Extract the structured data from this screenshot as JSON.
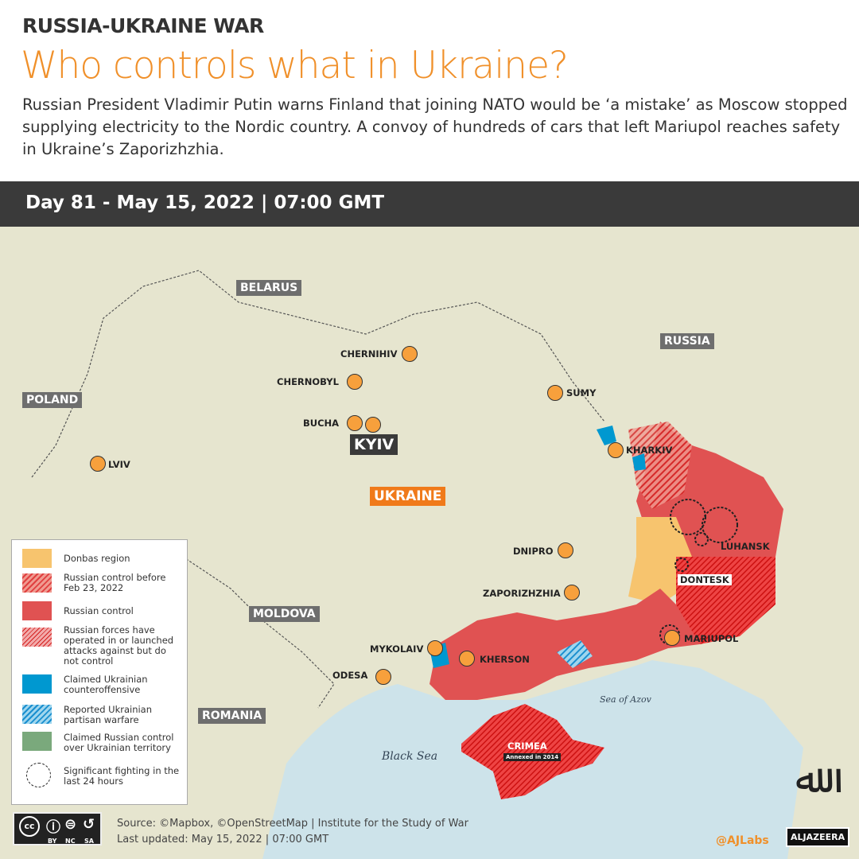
{
  "header": {
    "kicker": "RUSSIA-UKRAINE WAR",
    "title": "Who controls what in Ukraine?",
    "description": "Russian President Vladimir Putin warns Finland that joining NATO would be ‘a mistake’ as Moscow stopped supplying electricity to the Nordic country.  A convoy of hundreds of cars that left Mariupol reaches safety in Ukraine’s Zaporizhzhia."
  },
  "date_bar": "Day 81 - May 15, 2022 | 07:00 GMT",
  "countries": {
    "belarus": "BELARUS",
    "russia": "RUSSIA",
    "poland": "POLAND",
    "moldova": "MOLDOVA",
    "romania": "ROMANIA",
    "ukraine": "UKRAINE"
  },
  "cities": {
    "chernihiv": "CHERNIHIV",
    "chernobyl": "CHERNOBYL",
    "sumy": "SUMY",
    "bucha": "BUCHA",
    "kyiv": "KYIV",
    "kharkiv": "KHARKIV",
    "lviv": "LVIV",
    "luhansk": "LUHANSK",
    "dnipro": "DNIPRO",
    "dontesk": "DONTESK",
    "zaporizhzhia": "ZAPORIZHZHIA",
    "mariupol": "MARIUPOL",
    "mykolaiv": "MYKOLAIV",
    "kherson": "KHERSON",
    "odesa": "ODESA",
    "crimea": "CRIMEA",
    "crimea_note": "Annexed in 2014"
  },
  "seas": {
    "black": "Black Sea",
    "azov": "Sea of Azov"
  },
  "legend": [
    {
      "label": "Donbas region",
      "color": "#f7c46e"
    },
    {
      "label": "Russian control before Feb 23, 2022",
      "color": "#e8574f"
    },
    {
      "label": "Russian control",
      "color": "#e05252"
    },
    {
      "label": "Russian forces have operated in or launched attacks against but do not control",
      "color": "#e05252"
    },
    {
      "label": "Claimed Ukrainian counteroffensive",
      "color": "#0098d0"
    },
    {
      "label": "Reported Ukrainian partisan warfare",
      "color": "#30a8dc"
    },
    {
      "label": "Claimed Russian control over Ukrainian territory",
      "color": "#7aa97c"
    },
    {
      "label": "Significant fighting in the last 24 hours"
    }
  ],
  "footer": {
    "source": "Source: ©Mapbox, ©OpenStreetMap  |  Institute for the Study of War",
    "updated": "Last updated: May 15, 2022  |  07:00 GMT",
    "handle": "@AJLabs",
    "brand": "ALJAZEERA",
    "license": [
      "BY",
      "NC",
      "SA"
    ]
  },
  "colors": {
    "accent": "#f0902a",
    "russian_control": "#e05252",
    "sea": "#cde3ea",
    "land": "#e6e5cf"
  }
}
